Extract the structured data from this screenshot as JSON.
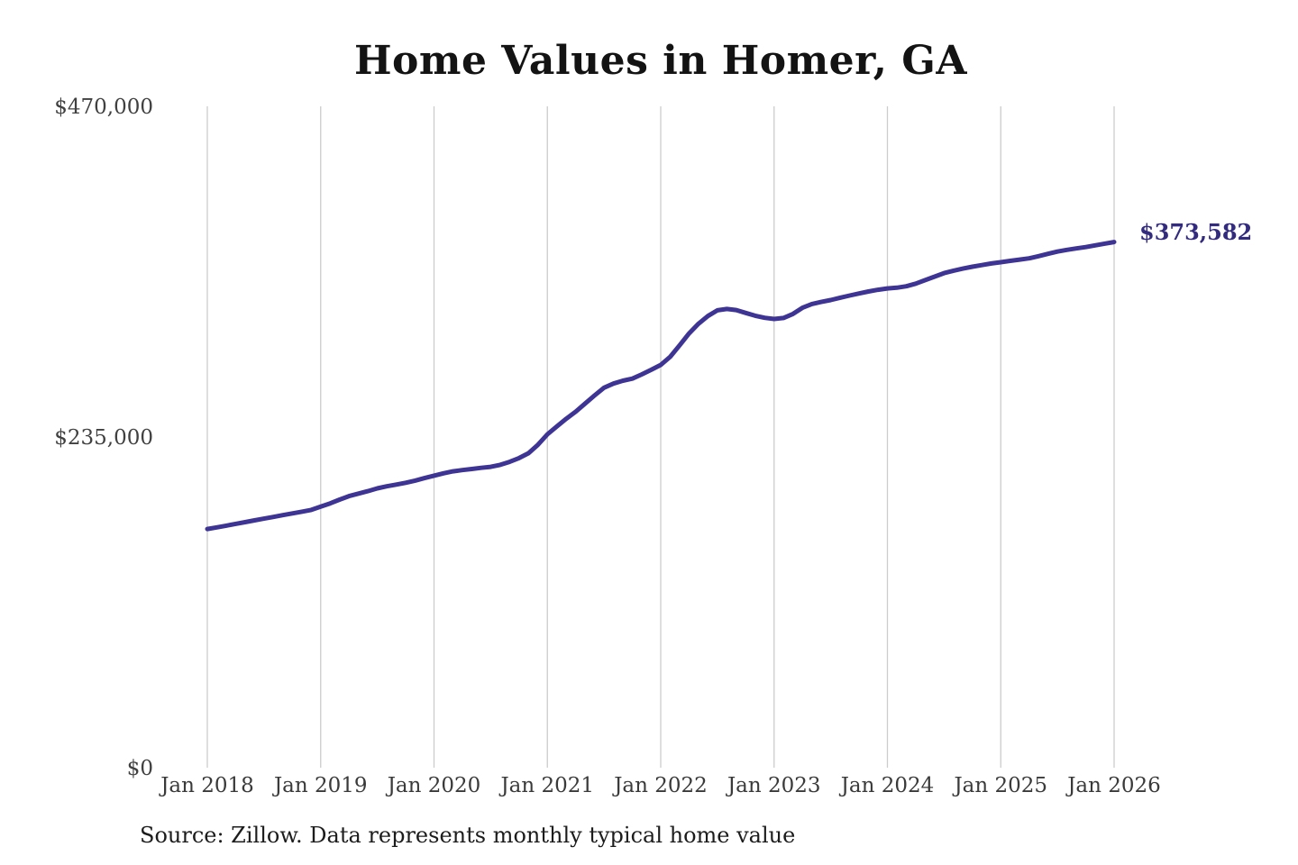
{
  "title": "Home Values in Homer, GA",
  "source_note": "Source: Zillow. Data represents monthly typical home value",
  "end_label": "$373,582",
  "colors": {
    "line": "#3d3493",
    "annotation": "#322b7e",
    "gridline": "#cccccc",
    "title": "#131313",
    "tick": "#404040",
    "source": "#1c1c1c",
    "background": "#ffffff"
  },
  "chart_data": {
    "type": "line",
    "title": "Home Values in Homer, GA",
    "xlabel": "",
    "ylabel": "",
    "x_unit": "month",
    "x_start": "2018-01",
    "x_end": "2026-01",
    "x_tick_labels": [
      "Jan 2018",
      "Jan 2019",
      "Jan 2020",
      "Jan 2021",
      "Jan 2022",
      "Jan 2023",
      "Jan 2024",
      "Jan 2025",
      "Jan 2026"
    ],
    "y_ticks": [
      {
        "label": "$470,000",
        "value": 470000
      },
      {
        "label": "$235,000",
        "value": 235000
      },
      {
        "label": "$0",
        "value": 0
      }
    ],
    "ylim": [
      0,
      470000
    ],
    "gridlines": {
      "vertical": true,
      "horizontal": false
    },
    "legend": "none",
    "final_value": 373582,
    "final_value_label": "$373,582",
    "series": [
      {
        "name": "typical-home-value",
        "values": [
          169600,
          170800,
          172000,
          173300,
          174500,
          175800,
          177000,
          178200,
          179500,
          180700,
          181900,
          183200,
          185500,
          187800,
          190500,
          193000,
          194800,
          196500,
          198500,
          200000,
          201200,
          202500,
          204000,
          205800,
          207500,
          209200,
          210600,
          211500,
          212300,
          213100,
          213800,
          215200,
          217300,
          220000,
          223500,
          229500,
          236900,
          242500,
          248000,
          253000,
          258800,
          264500,
          270000,
          273000,
          275000,
          276500,
          279500,
          282800,
          286200,
          292000,
          300200,
          308600,
          315500,
          321000,
          325000,
          326000,
          325200,
          323200,
          321200,
          319700,
          318900,
          319600,
          322500,
          326800,
          329500,
          331000,
          332300,
          334000,
          335500,
          337000,
          338400,
          339600,
          340600,
          341100,
          342100,
          344000,
          346500,
          349000,
          351500,
          353200,
          354700,
          356000,
          357200,
          358300,
          359200,
          360200,
          361100,
          362000,
          363500,
          365200,
          366800,
          368000,
          369000,
          370000,
          371200,
          372400,
          373582
        ]
      }
    ]
  }
}
